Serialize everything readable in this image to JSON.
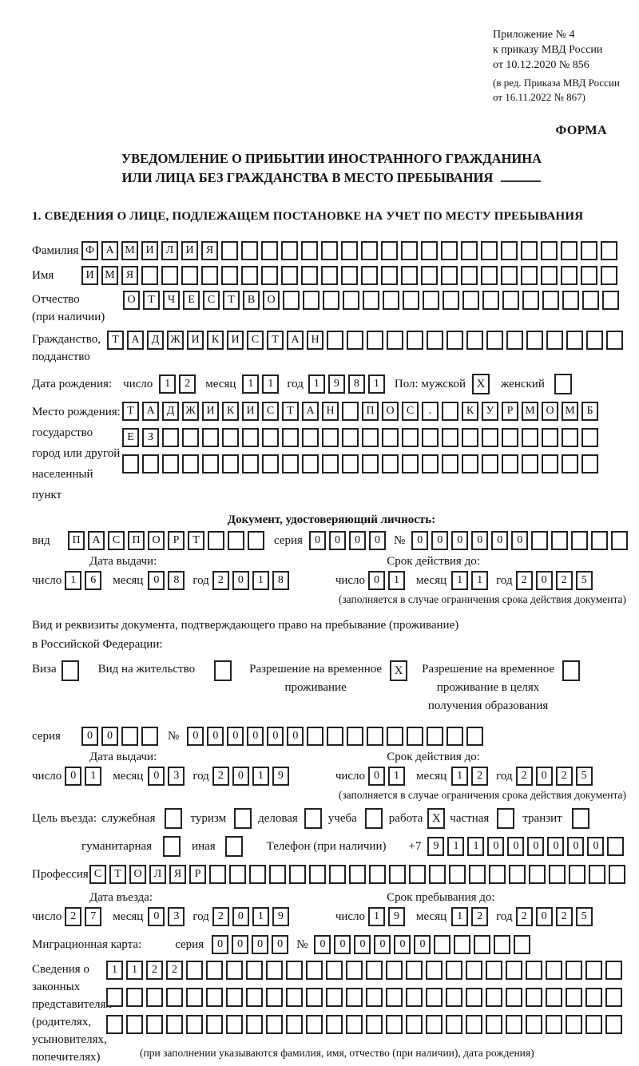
{
  "header": {
    "appendix_lines": [
      "Приложение № 4",
      "к приказу МВД России",
      "от 10.12.2020 № 856"
    ],
    "revision_lines": [
      "(в ред. Приказа МВД России",
      "от 16.11.2022 № 867)"
    ],
    "form_label": "ФОРМА"
  },
  "title": {
    "line1": "УВЕДОМЛЕНИЕ О ПРИБЫТИИ ИНОСТРАННОГО ГРАЖДАНИНА",
    "line2": "ИЛИ ЛИЦА БЕЗ ГРАЖДАНСТВА В МЕСТО ПРЕБЫВАНИЯ"
  },
  "section1": {
    "heading": "1. СВЕДЕНИЯ О ЛИЦЕ, ПОДЛЕЖАЩЕМ ПОСТАНОВКЕ НА УЧЕТ ПО МЕСТУ ПРЕБЫВАНИЯ"
  },
  "surname": {
    "label": "Фамилия",
    "cells": {
      "count": 27,
      "value": "ФАМИЛИЯ"
    }
  },
  "firstname": {
    "label": "Имя",
    "cells": {
      "count": 27,
      "value": "ИМЯ"
    }
  },
  "patronymic": {
    "label1": "Отчество",
    "label2": "(при наличии)",
    "cells": {
      "count": 25,
      "value": "ОТЧЕСТВО"
    }
  },
  "citizenship": {
    "label1": "Гражданство,",
    "label2": "подданство",
    "cells": {
      "count": 26,
      "value": "ТАДЖИКИСТАН"
    }
  },
  "birth": {
    "label": "Дата рождения:",
    "day_label": "число",
    "day": {
      "count": 2,
      "value": "12"
    },
    "month_label": "месяц",
    "month": {
      "count": 2,
      "value": "11"
    },
    "year_label": "год",
    "year": {
      "count": 4,
      "value": "1981"
    },
    "sex_label": "Пол: мужской",
    "male_mark": "X",
    "female_label": "женский",
    "female_mark": ""
  },
  "birthplace": {
    "label1": "Место рождения:",
    "label2": "государство",
    "label3": "город или другой",
    "label4": "населенный пункт",
    "line1": {
      "count": 24,
      "value": "ТАДЖИКИСТАН ПОС. КУРМОМБ"
    },
    "line2": {
      "count": 24,
      "value": "ЕЗ"
    },
    "line3": {
      "count": 24,
      "value": ""
    }
  },
  "identity_doc": {
    "heading": "Документ, удостоверяющий личность:",
    "type_label": "вид",
    "type": {
      "count": 10,
      "value": "ПАСПОРТ"
    },
    "series_label": "серия",
    "series": {
      "count": 4,
      "value": "0000"
    },
    "number_label": "№",
    "number": {
      "count": 11,
      "value": "000000"
    },
    "issue_heading": "Дата выдачи:",
    "valid_heading": "Срок действия до:",
    "issue": {
      "day_label": "число",
      "day": {
        "count": 2,
        "value": "16"
      },
      "month_label": "месяц",
      "month": {
        "count": 2,
        "value": "08"
      },
      "year_label": "год",
      "year": {
        "count": 4,
        "value": "2018"
      }
    },
    "valid": {
      "day_label": "число",
      "day": {
        "count": 2,
        "value": "01"
      },
      "month_label": "месяц",
      "month": {
        "count": 2,
        "value": "11"
      },
      "year_label": "год",
      "year": {
        "count": 4,
        "value": "2025"
      }
    },
    "note": "(заполняется в случае ограничения срока действия документа)"
  },
  "residence_doc": {
    "intro1": "Вид и реквизиты документа, подтверждающего право на пребывание (проживание)",
    "intro2": "в Российской Федерации:",
    "visa_label": "Виза",
    "visa_mark": "",
    "vnj_label": "Вид на жительство",
    "vnj_mark": "",
    "rvp_label1": "Разрешение на временное",
    "rvp_label2": "проживание",
    "rvp_mark": "X",
    "rvp_edu_label1": "Разрешение на временное",
    "rvp_edu_label2": "проживание в целях",
    "rvp_edu_label3": "получения образования",
    "rvp_edu_mark": "",
    "series_label": "серия",
    "series": {
      "count": 4,
      "value": "00"
    },
    "number_label": "№",
    "number": {
      "count": 15,
      "value": "000000"
    },
    "issue_heading": "Дата выдачи:",
    "valid_heading": "Срок действия до:",
    "issue": {
      "day_label": "число",
      "day": {
        "count": 2,
        "value": "01"
      },
      "month_label": "месяц",
      "month": {
        "count": 2,
        "value": "03"
      },
      "year_label": "год",
      "year": {
        "count": 4,
        "value": "2019"
      }
    },
    "valid": {
      "day_label": "число",
      "day": {
        "count": 2,
        "value": "01"
      },
      "month_label": "месяц",
      "month": {
        "count": 2,
        "value": "12"
      },
      "year_label": "год",
      "year": {
        "count": 4,
        "value": "2025"
      }
    },
    "note": "(заполняется в случае ограничения срока действия документа)"
  },
  "visit": {
    "label": "Цель въезда:",
    "p1_label": "служебная",
    "p1_mark": "",
    "p2_label": "туризм",
    "p2_mark": "",
    "p3_label": "деловая",
    "p3_mark": "",
    "p4_label": "учеба",
    "p4_mark": "",
    "p5_label": "работа",
    "p5_mark": "X",
    "p6_label": "частная",
    "p6_mark": "",
    "p7_label": "транзит",
    "p7_mark": "",
    "p8_label": "гуманитарная",
    "p8_mark": "",
    "p9_label": "иная",
    "p9_mark": "",
    "phone_label": "Телефон (при наличии)",
    "phone_prefix": "+7",
    "phone": {
      "count": 10,
      "value": "911000000"
    }
  },
  "profession": {
    "label": "Профессия",
    "cells": {
      "count": 27,
      "value": "СТОЛЯР"
    }
  },
  "entry": {
    "issue_heading": "Дата въезда:",
    "valid_heading": "Срок пребывания до:",
    "issue": {
      "day_label": "число",
      "day": {
        "count": 2,
        "value": "27"
      },
      "month_label": "месяц",
      "month": {
        "count": 2,
        "value": "03"
      },
      "year_label": "год",
      "year": {
        "count": 4,
        "value": "2019"
      }
    },
    "valid": {
      "day_label": "число",
      "day": {
        "count": 2,
        "value": "19"
      },
      "month_label": "месяц",
      "month": {
        "count": 2,
        "value": "12"
      },
      "year_label": "год",
      "year": {
        "count": 4,
        "value": "2025"
      }
    }
  },
  "migration_card": {
    "label": "Миграционная карта:",
    "series_label": "серия",
    "series": {
      "count": 4,
      "value": "0000"
    },
    "number_label": "№",
    "number": {
      "count": 11,
      "value": "000000"
    }
  },
  "representatives": {
    "label_lines": [
      "Сведения о",
      "законных",
      "представителях",
      "(родителях,",
      "усыновителях,",
      "попечителях)"
    ],
    "line1": {
      "count": 26,
      "value": "1122"
    },
    "line2": {
      "count": 26,
      "value": ""
    },
    "line3": {
      "count": 26,
      "value": ""
    },
    "note": "(при заполнении указываются фамилия, имя, отчество (при наличии), дата рождения)"
  }
}
